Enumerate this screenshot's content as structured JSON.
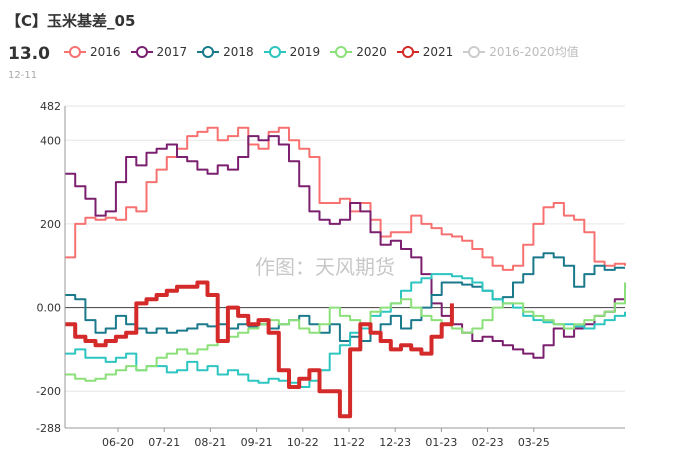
{
  "header": {
    "title": "【C】玉米基差_05",
    "latest_value": "13.0",
    "latest_date": "12-11"
  },
  "watermark": "作图：天风期货",
  "chart_data": {
    "type": "line",
    "title": "【C】玉米基差_05",
    "ylim": [
      -288,
      482
    ],
    "yticks": [
      482,
      400,
      200,
      0.0,
      -200,
      -288
    ],
    "ytick_labels": [
      "482",
      "400",
      "200",
      "0.00",
      "-200",
      "-288"
    ],
    "xticks": [
      "06-20",
      "07-21",
      "08-21",
      "09-21",
      "10-22",
      "11-22",
      "12-23",
      "01-23",
      "02-23",
      "03-25"
    ],
    "n_points": 56,
    "legend_position": "top",
    "series": [
      {
        "name": "2016",
        "color": "#f87171",
        "width": 2,
        "values": [
          120,
          200,
          215,
          210,
          215,
          210,
          240,
          230,
          300,
          330,
          360,
          380,
          410,
          420,
          430,
          400,
          410,
          430,
          390,
          380,
          420,
          430,
          400,
          380,
          360,
          250,
          250,
          260,
          230,
          250,
          210,
          170,
          180,
          180,
          220,
          200,
          190,
          175,
          170,
          160,
          140,
          120,
          100,
          90,
          100,
          150,
          200,
          240,
          250,
          220,
          210,
          180,
          110,
          100,
          105,
          100
        ]
      },
      {
        "name": "2017",
        "color": "#7b1f6f",
        "width": 2,
        "values": [
          320,
          290,
          260,
          220,
          230,
          300,
          360,
          340,
          370,
          380,
          390,
          360,
          350,
          330,
          320,
          340,
          330,
          360,
          410,
          400,
          410,
          390,
          350,
          290,
          230,
          210,
          200,
          210,
          250,
          230,
          180,
          150,
          160,
          140,
          120,
          80,
          10,
          -20,
          -40,
          -60,
          -80,
          -70,
          -80,
          -90,
          -100,
          -110,
          -120,
          -90,
          -50,
          -70,
          -50,
          -40,
          -20,
          -10,
          20,
          20
        ]
      },
      {
        "name": "2018",
        "color": "#1a7a8c",
        "width": 2,
        "values": [
          30,
          20,
          -30,
          -60,
          -50,
          -20,
          -40,
          -50,
          -60,
          -50,
          -60,
          -55,
          -50,
          -40,
          -45,
          -40,
          -50,
          -40,
          -45,
          -40,
          -50,
          -40,
          -30,
          -20,
          -40,
          -60,
          -40,
          -80,
          -70,
          -80,
          -60,
          -40,
          -20,
          -50,
          -30,
          0,
          30,
          60,
          60,
          55,
          50,
          40,
          20,
          25,
          60,
          80,
          120,
          130,
          120,
          100,
          50,
          80,
          100,
          90,
          95,
          95
        ]
      },
      {
        "name": "2019",
        "color": "#2cc5c0",
        "width": 2,
        "values": [
          -110,
          -100,
          -120,
          -120,
          -130,
          -120,
          -110,
          -150,
          -140,
          -140,
          -155,
          -150,
          -130,
          -150,
          -140,
          -160,
          -150,
          -160,
          -175,
          -180,
          -170,
          -175,
          -180,
          -190,
          -175,
          -150,
          -110,
          -90,
          -60,
          -50,
          -20,
          -10,
          10,
          40,
          60,
          70,
          80,
          80,
          75,
          70,
          60,
          40,
          20,
          10,
          0,
          -20,
          -30,
          -35,
          -40,
          -40,
          -45,
          -50,
          -40,
          -30,
          -20,
          -10
        ]
      },
      {
        "name": "2020",
        "color": "#8be07a",
        "width": 2,
        "values": [
          -160,
          -170,
          -175,
          -170,
          -160,
          -150,
          -140,
          -150,
          -140,
          -120,
          -110,
          -100,
          -110,
          -100,
          -90,
          -80,
          -70,
          -60,
          -50,
          -40,
          -30,
          -40,
          -30,
          -50,
          -60,
          -40,
          0,
          -20,
          -30,
          -40,
          -10,
          0,
          10,
          20,
          0,
          -20,
          -30,
          -40,
          -50,
          -60,
          -50,
          -30,
          0,
          10,
          10,
          -10,
          -20,
          -30,
          -40,
          -50,
          -40,
          -30,
          -20,
          -10,
          10,
          60
        ]
      },
      {
        "name": "2021",
        "color": "#d42a2a",
        "width": 4,
        "values": [
          -40,
          -70,
          -80,
          -90,
          -80,
          -70,
          -60,
          10,
          20,
          30,
          40,
          50,
          50,
          60,
          30,
          -80,
          0,
          -20,
          -40,
          -30,
          -60,
          -150,
          -190,
          -170,
          -150,
          -200,
          -200,
          -260,
          -100,
          -40,
          -60,
          -80,
          -100,
          -90,
          -100,
          -110,
          -70,
          -40,
          10,
          null,
          null,
          null,
          null,
          null,
          null,
          null,
          null,
          null,
          null,
          null,
          null,
          null,
          null,
          null,
          null,
          null
        ]
      },
      {
        "name": "2016-2020均值",
        "color": "#cccccc",
        "width": 1.5,
        "hidden": true,
        "values": []
      }
    ]
  }
}
